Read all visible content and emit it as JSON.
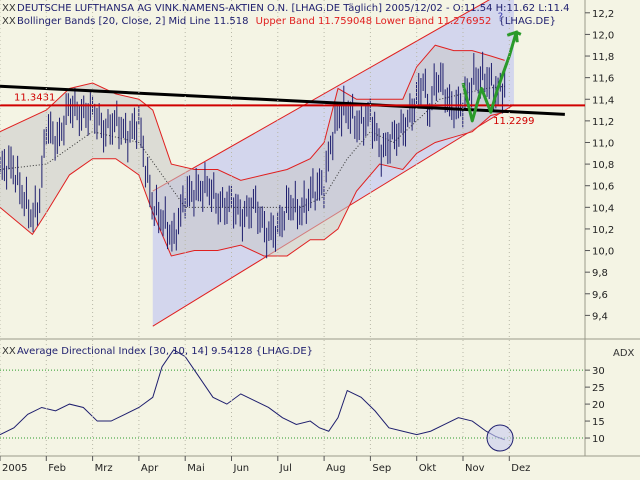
{
  "header": {
    "title": "DEUTSCHE LUFTHANSA AG VINK.NAMENS-AKTIEN O.N. [LHAG.DE  Täglich] 2005/12/02 - O:11.54 H:11.62 L:11.4",
    "bb_prefix": "Bollinger Bands [20, Close, 2] Mid Line 11.518",
    "bb_bands": "Upper Band 11.759048 Lower Band 11.276952",
    "bb_suffix": "{LHAG.DE}"
  },
  "adx_header": "Average Directional Index [30, 10, 14] 9.54128 {LHAG.DE}",
  "adx_label": "ADX",
  "icons": {
    "tool": "xx-indicator-icon"
  },
  "colors": {
    "background": "#F4F4E4",
    "price_bars": "#1E1E6E",
    "band_line": "#E02020",
    "band_fill": "#C8C8C8",
    "channel_fill": "#C8CCF0",
    "trendline": "#000000",
    "support": "#D00000",
    "forecast": "#2A9A2A",
    "adx_line": "#1E1E6E",
    "adx_ref": "#2A9A2A"
  },
  "chart_data": [
    {
      "type": "line",
      "title": "DEUTSCHE LUFTHANSA AG VINK.NAMENS-AKTIEN O.N.",
      "ylim": [
        9.2,
        12.3
      ],
      "yticks": [
        9.4,
        9.6,
        9.8,
        10.0,
        10.2,
        10.4,
        10.6,
        10.8,
        11.0,
        11.2,
        11.4,
        11.6,
        11.8,
        12.0,
        12.2
      ],
      "ytick_labels": [
        "9,4",
        "9,6",
        "9,8",
        "10,0",
        "10,2",
        "10,4",
        "10,6",
        "10,8",
        "11,0",
        "11,2",
        "11,4",
        "11,6",
        "11,8",
        "12,0",
        "12,2"
      ],
      "months": [
        "2005",
        "Feb",
        "Mrz",
        "Apr",
        "Mai",
        "Jun",
        "Jul",
        "Aug",
        "Sep",
        "Okt",
        "Nov",
        "Dez"
      ],
      "x_range": [
        0,
        11.5
      ],
      "series": [
        {
          "name": "Close",
          "x": [
            0,
            0.25,
            0.5,
            0.7,
            0.85,
            1.0,
            1.25,
            1.5,
            1.75,
            2.0,
            2.25,
            2.5,
            2.75,
            3.0,
            3.15,
            3.3,
            3.5,
            3.75,
            4.0,
            4.25,
            4.5,
            4.75,
            5.0,
            5.25,
            5.5,
            5.75,
            6.0,
            6.25,
            6.5,
            6.75,
            7.0,
            7.15,
            7.3,
            7.5,
            7.75,
            8.0,
            8.25,
            8.5,
            8.75,
            9.0,
            9.15,
            9.25,
            9.4,
            9.5,
            9.75,
            10.0,
            10.25,
            10.5,
            10.75,
            10.9
          ],
          "values": [
            10.75,
            10.8,
            10.5,
            10.3,
            10.45,
            11.15,
            11.0,
            11.35,
            11.25,
            11.3,
            11.1,
            11.2,
            11.05,
            11.2,
            10.75,
            10.4,
            10.3,
            10.1,
            10.5,
            10.55,
            10.6,
            10.4,
            10.45,
            10.3,
            10.45,
            10.15,
            10.2,
            10.45,
            10.35,
            10.55,
            10.6,
            11.0,
            11.25,
            11.3,
            11.15,
            11.25,
            10.9,
            11.05,
            11.15,
            11.4,
            11.6,
            11.25,
            11.55,
            11.6,
            11.3,
            11.35,
            11.6,
            11.6,
            11.45,
            11.54
          ]
        },
        {
          "name": "Upper Band",
          "x": [
            0,
            1.0,
            1.5,
            2.0,
            2.5,
            3.0,
            3.3,
            3.7,
            4.2,
            4.7,
            5.2,
            5.7,
            6.2,
            6.7,
            7.0,
            7.3,
            7.7,
            8.2,
            8.7,
            9.0,
            9.4,
            9.8,
            10.2,
            10.6,
            10.9
          ],
          "values": [
            11.1,
            11.3,
            11.5,
            11.55,
            11.45,
            11.4,
            11.3,
            10.8,
            10.75,
            10.75,
            10.65,
            10.7,
            10.75,
            10.85,
            11.0,
            11.5,
            11.4,
            11.4,
            11.4,
            11.7,
            11.9,
            11.85,
            11.85,
            11.8,
            11.76
          ]
        },
        {
          "name": "Lower Band",
          "x": [
            0,
            0.7,
            1.0,
            1.5,
            2.0,
            2.5,
            3.0,
            3.3,
            3.7,
            4.2,
            4.7,
            5.2,
            5.7,
            6.2,
            6.7,
            7.0,
            7.3,
            7.7,
            8.2,
            8.7,
            9.0,
            9.4,
            9.8,
            10.2,
            10.6,
            10.9
          ],
          "values": [
            10.4,
            10.15,
            10.35,
            10.7,
            10.85,
            10.85,
            10.7,
            10.35,
            9.95,
            10.0,
            10.0,
            10.05,
            9.95,
            9.95,
            10.1,
            10.1,
            10.2,
            10.55,
            10.8,
            10.75,
            10.9,
            11.0,
            11.05,
            11.1,
            11.25,
            11.28
          ]
        },
        {
          "name": "Mid Line",
          "x": [
            0,
            1.0,
            2.0,
            3.0,
            3.5,
            4.0,
            5.0,
            6.0,
            6.5,
            7.0,
            7.5,
            8.0,
            8.5,
            9.0,
            9.5,
            10.0,
            10.5,
            10.9
          ],
          "values": [
            10.75,
            10.8,
            11.1,
            11.0,
            10.7,
            10.4,
            10.4,
            10.4,
            10.4,
            10.5,
            10.85,
            11.1,
            11.0,
            11.2,
            11.4,
            11.45,
            11.5,
            11.52
          ]
        }
      ],
      "channel": {
        "start": {
          "x": 3.3,
          "lower": 9.3,
          "upper": 10.55
        },
        "end": {
          "x": 11.1,
          "lower": 11.35,
          "upper": 12.45
        }
      },
      "trendline": {
        "start": {
          "x": 0,
          "y": 11.52
        },
        "end": {
          "x": 12.2,
          "y": 11.26
        }
      },
      "support_level": {
        "value": 11.3431,
        "label": "11.3431"
      },
      "annotations": [
        {
          "text": "11.2299",
          "x": 10.65,
          "y": 11.17
        },
        {
          "text": "?",
          "x": 10.75,
          "y": 12.14
        }
      ],
      "forecast_path": {
        "x": [
          10.0,
          10.2,
          10.4,
          10.6,
          10.75,
          11.0,
          11.15,
          11.25
        ],
        "values": [
          11.55,
          11.2,
          11.5,
          11.28,
          11.5,
          11.8,
          12.02,
          12.0
        ]
      }
    },
    {
      "type": "line",
      "title": "Average Directional Index",
      "ylim": [
        5,
        38
      ],
      "yticks": [
        10,
        15,
        20,
        25,
        30
      ],
      "ytick_labels": [
        "10",
        "15",
        "20",
        "25",
        "30"
      ],
      "reference_lines": [
        10,
        30
      ],
      "series": [
        {
          "name": "ADX",
          "x": [
            0,
            0.3,
            0.6,
            0.9,
            1.2,
            1.5,
            1.8,
            2.1,
            2.4,
            2.7,
            3.0,
            3.3,
            3.5,
            3.75,
            4.0,
            4.3,
            4.6,
            4.9,
            5.2,
            5.5,
            5.8,
            6.1,
            6.4,
            6.7,
            6.9,
            7.1,
            7.3,
            7.5,
            7.8,
            8.1,
            8.4,
            8.7,
            9.0,
            9.3,
            9.6,
            9.9,
            10.2,
            10.5,
            10.7,
            10.9
          ],
          "values": [
            11,
            13,
            17,
            19,
            18,
            20,
            19,
            15,
            15,
            17,
            19,
            22,
            31,
            36,
            34,
            28,
            22,
            20,
            23,
            21,
            19,
            16,
            14,
            15,
            13,
            12,
            16,
            24,
            22,
            18,
            13,
            12,
            11,
            12,
            14,
            16,
            15,
            12,
            10.5,
            9.5
          ]
        }
      ],
      "highlight": {
        "x": 10.8,
        "value": 10
      }
    }
  ]
}
